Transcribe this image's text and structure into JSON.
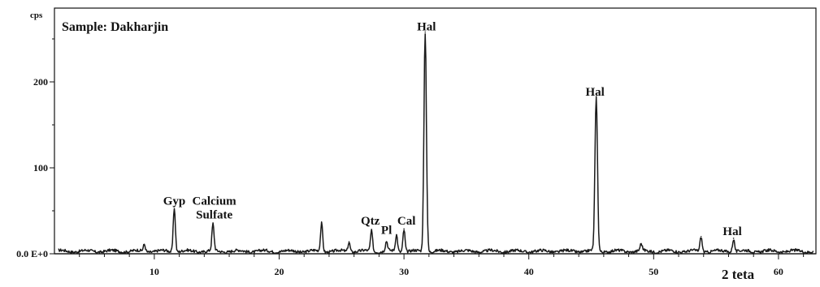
{
  "chart_data": {
    "type": "line",
    "title": "Sample: Dakharjin",
    "ylabel": "cps",
    "xlabel": "2 teta",
    "xlim": [
      2,
      63
    ],
    "ylim": [
      0,
      250
    ],
    "x_ticks": [
      10,
      20,
      30,
      40,
      50,
      60
    ],
    "y_ticks": [
      {
        "value": 0,
        "label": "0.0 E+0"
      },
      {
        "value": 100,
        "label": "100"
      },
      {
        "value": 200,
        "label": "200"
      }
    ],
    "baseline": 3,
    "peaks": [
      {
        "x": 9.2,
        "height": 8
      },
      {
        "x": 11.6,
        "height": 52
      },
      {
        "x": 14.7,
        "height": 31
      },
      {
        "x": 23.4,
        "height": 33
      },
      {
        "x": 25.6,
        "height": 11
      },
      {
        "x": 27.4,
        "height": 24
      },
      {
        "x": 28.6,
        "height": 11
      },
      {
        "x": 29.4,
        "height": 19
      },
      {
        "x": 30.0,
        "height": 26
      },
      {
        "x": 31.7,
        "height": 255
      },
      {
        "x": 45.4,
        "height": 180
      },
      {
        "x": 49.0,
        "height": 8
      },
      {
        "x": 53.8,
        "height": 17
      },
      {
        "x": 56.4,
        "height": 15
      }
    ],
    "annotations": [
      {
        "text": "Gyp",
        "x": 11.6,
        "y": 55
      },
      {
        "text": "Calcium",
        "x": 14.8,
        "y": 55
      },
      {
        "text": "Sulfate",
        "x": 14.8,
        "y": 39
      },
      {
        "text": "Qtz",
        "x": 27.3,
        "y": 32
      },
      {
        "text": "Pl",
        "x": 28.6,
        "y": 21
      },
      {
        "text": "Cal",
        "x": 30.2,
        "y": 32
      },
      {
        "text": "Hal",
        "x": 31.8,
        "y": 258
      },
      {
        "text": "Hal",
        "x": 45.3,
        "y": 182
      },
      {
        "text": "Hal",
        "x": 56.3,
        "y": 20
      }
    ]
  }
}
